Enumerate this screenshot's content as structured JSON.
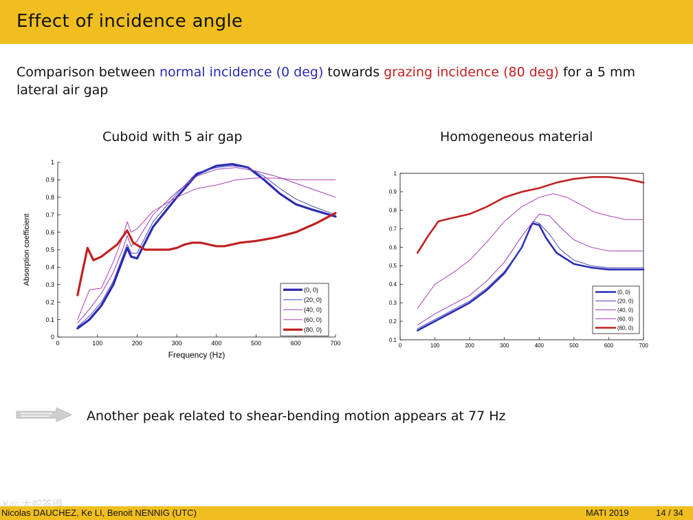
{
  "slide": {
    "title": "Effect of incidence angle",
    "intro": {
      "part1": "Comparison between ",
      "normal": "normal incidence (0 deg)",
      "part2": " towards ",
      "grazing": "grazing incidence (80 deg)",
      "part3": " for a 5 mm lateral air gap"
    },
    "note": "Another peak related to shear-bending motion appears at 77 Hz",
    "footer": {
      "authors": "Nicolas DAUCHEZ, Ke LI, Benoit NENNIG  (UTC)",
      "event": "MATI 2019",
      "page": "14 / 34"
    },
    "watermark": "K◎ 大蛇答得"
  },
  "colors": {
    "accent": "#f0bf1f",
    "blue": "#2a2ab0",
    "red": "#c02020"
  },
  "chart_data": [
    {
      "type": "line",
      "title": "Cuboid with 5 air gap",
      "xlabel": "Frequency (Hz)",
      "ylabel": "Absorption coefficient",
      "xlim": [
        0,
        700
      ],
      "ylim": [
        0,
        1
      ],
      "xticks": [
        "0",
        "100",
        "200",
        "300",
        "400",
        "500",
        "600",
        "700"
      ],
      "yticks": [
        "0",
        "0.1",
        "0.2",
        "0.3",
        "0.4",
        "0.5",
        "0.6",
        "0.7",
        "0.8",
        "0.9",
        "1"
      ],
      "legend": "bottom-right",
      "series": [
        {
          "name": "(0, 0)",
          "color": "#2a2ab0",
          "width": 3.2,
          "x": [
            50,
            80,
            110,
            140,
            165,
            175,
            185,
            200,
            240,
            300,
            350,
            400,
            440,
            480,
            520,
            560,
            600,
            640,
            700
          ],
          "y": [
            0.05,
            0.1,
            0.18,
            0.3,
            0.45,
            0.51,
            0.46,
            0.45,
            0.63,
            0.8,
            0.93,
            0.98,
            0.99,
            0.97,
            0.9,
            0.82,
            0.76,
            0.73,
            0.69
          ]
        },
        {
          "name": "(20, 0)",
          "color": "#4848c0",
          "width": 1,
          "x": [
            50,
            80,
            110,
            140,
            165,
            175,
            185,
            200,
            240,
            300,
            350,
            400,
            440,
            480,
            520,
            560,
            600,
            640,
            700
          ],
          "y": [
            0.06,
            0.12,
            0.2,
            0.32,
            0.47,
            0.53,
            0.48,
            0.48,
            0.66,
            0.82,
            0.94,
            0.97,
            0.98,
            0.97,
            0.92,
            0.85,
            0.79,
            0.75,
            0.7
          ]
        },
        {
          "name": "(40, 0)",
          "color": "#9a3ab8",
          "width": 1,
          "x": [
            50,
            80,
            110,
            140,
            165,
            175,
            185,
            200,
            240,
            300,
            350,
            400,
            450,
            500,
            550,
            600,
            650,
            700
          ],
          "y": [
            0.08,
            0.16,
            0.25,
            0.37,
            0.51,
            0.58,
            0.52,
            0.55,
            0.7,
            0.83,
            0.92,
            0.96,
            0.97,
            0.95,
            0.92,
            0.88,
            0.84,
            0.8
          ]
        },
        {
          "name": "(60, 0)",
          "color": "#b040b0",
          "width": 1,
          "x": [
            50,
            80,
            110,
            140,
            165,
            175,
            185,
            200,
            240,
            300,
            350,
            400,
            450,
            500,
            550,
            600,
            650,
            700
          ],
          "y": [
            0.1,
            0.27,
            0.28,
            0.43,
            0.58,
            0.66,
            0.6,
            0.62,
            0.72,
            0.8,
            0.85,
            0.87,
            0.9,
            0.91,
            0.91,
            0.9,
            0.9,
            0.9
          ]
        },
        {
          "name": "(80, 0)",
          "color": "#c02020",
          "width": 3.2,
          "x": [
            50,
            60,
            75,
            90,
            110,
            150,
            175,
            190,
            220,
            280,
            300,
            320,
            340,
            360,
            380,
            400,
            420,
            440,
            460,
            500,
            550,
            600,
            650,
            700
          ],
          "y": [
            0.24,
            0.35,
            0.51,
            0.44,
            0.46,
            0.53,
            0.61,
            0.54,
            0.5,
            0.5,
            0.51,
            0.53,
            0.54,
            0.54,
            0.53,
            0.52,
            0.52,
            0.53,
            0.54,
            0.55,
            0.57,
            0.6,
            0.65,
            0.71
          ]
        }
      ]
    },
    {
      "type": "line",
      "title": "Homogeneous material",
      "xlabel": "",
      "ylabel": "",
      "xlim": [
        0,
        700
      ],
      "ylim": [
        0.1,
        1
      ],
      "xticks": [
        "0",
        "100",
        "200",
        "300",
        "400",
        "500",
        "600",
        "700"
      ],
      "yticks": [
        "0.1",
        "0.2",
        "0.3",
        "0.4",
        "0.5",
        "0.6",
        "0.7",
        "0.8",
        "0.9",
        "1"
      ],
      "legend": "bottom-right",
      "series": [
        {
          "name": "(0, 0)",
          "color": "#2a2ab0",
          "width": 2.6,
          "x": [
            50,
            100,
            150,
            200,
            250,
            300,
            350,
            380,
            400,
            420,
            450,
            500,
            550,
            600,
            650,
            700
          ],
          "y": [
            0.15,
            0.2,
            0.25,
            0.3,
            0.37,
            0.46,
            0.6,
            0.73,
            0.72,
            0.65,
            0.57,
            0.51,
            0.49,
            0.48,
            0.48,
            0.48
          ]
        },
        {
          "name": "(20, 0)",
          "color": "#4848c0",
          "width": 1,
          "x": [
            50,
            100,
            150,
            200,
            250,
            300,
            350,
            385,
            400,
            430,
            460,
            500,
            550,
            600,
            650,
            700
          ],
          "y": [
            0.16,
            0.21,
            0.26,
            0.31,
            0.38,
            0.47,
            0.6,
            0.74,
            0.73,
            0.67,
            0.59,
            0.53,
            0.5,
            0.49,
            0.49,
            0.49
          ]
        },
        {
          "name": "(40, 0)",
          "color": "#9a3ab8",
          "width": 1,
          "x": [
            50,
            100,
            150,
            200,
            250,
            300,
            350,
            400,
            430,
            460,
            500,
            550,
            600,
            650,
            700
          ],
          "y": [
            0.18,
            0.24,
            0.29,
            0.34,
            0.42,
            0.52,
            0.66,
            0.78,
            0.77,
            0.71,
            0.64,
            0.6,
            0.58,
            0.58,
            0.58
          ]
        },
        {
          "name": "(60, 0)",
          "color": "#b040b0",
          "width": 1,
          "x": [
            50,
            100,
            150,
            200,
            250,
            300,
            350,
            400,
            440,
            480,
            520,
            560,
            600,
            650,
            700
          ],
          "y": [
            0.27,
            0.4,
            0.46,
            0.53,
            0.63,
            0.74,
            0.82,
            0.87,
            0.89,
            0.87,
            0.83,
            0.79,
            0.77,
            0.75,
            0.75
          ]
        },
        {
          "name": "(80, 0)",
          "color": "#c02020",
          "width": 2.6,
          "x": [
            50,
            80,
            110,
            130,
            200,
            250,
            300,
            350,
            400,
            450,
            500,
            550,
            600,
            650,
            700
          ],
          "y": [
            0.57,
            0.66,
            0.74,
            0.75,
            0.78,
            0.82,
            0.87,
            0.9,
            0.92,
            0.95,
            0.97,
            0.98,
            0.98,
            0.97,
            0.95
          ]
        }
      ]
    }
  ]
}
